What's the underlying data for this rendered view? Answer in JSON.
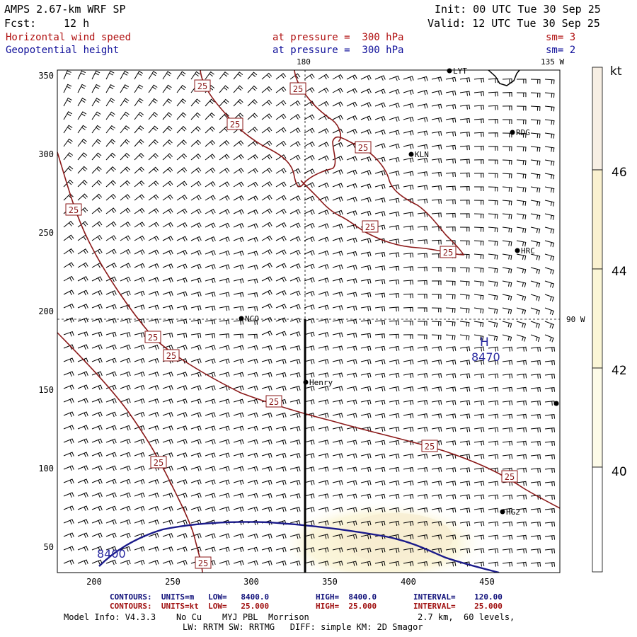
{
  "header": {
    "model": "AMPS 2.67-km WRF SP",
    "fcst_label": "Fcst:",
    "fcst_value": "12 h",
    "init": "Init: 00 UTC Tue 30 Sep 25",
    "valid": "Valid: 12 UTC Tue 30 Sep 25",
    "field1": "Horizontal wind speed",
    "field1_level": "at pressure =  300 hPa",
    "field1_sm": "sm= 3",
    "field2": "Geopotential height",
    "field2_level": "at pressure =  300 hPa",
    "field2_sm": "sm= 2"
  },
  "map": {
    "lon_top_180": "180",
    "lon_top_135w": "135 W",
    "lon_right_90w": "90 W",
    "x_ticks": [
      "200",
      "250",
      "300",
      "350",
      "400",
      "450"
    ],
    "y_ticks": [
      "350",
      "300",
      "250",
      "200",
      "150",
      "100",
      "50"
    ],
    "stations": [
      "LYT",
      "RDG",
      "KLN",
      "HRC",
      "NCO",
      "Henry",
      "HG2"
    ],
    "high_marker": "H",
    "high_value": "8470",
    "low_contour_label": "8400",
    "speed_contour_label": "25",
    "colors": {
      "speed_contour": "#8b1a1a",
      "height_contour": "#1a1a8a",
      "shade": "#faf3c8"
    }
  },
  "colorbar": {
    "unit": "kt",
    "labels": [
      "46",
      "44",
      "42",
      "40"
    ],
    "colors": [
      "#f7efe4",
      "#faf1d0",
      "#fbf6d6",
      "#fdfbe8",
      "#ffffff"
    ]
  },
  "footer": {
    "line1_title": "CONTOURS:  UNITS=m   LOW=   8400.0",
    "line1_high": "HIGH=  8400.0",
    "line1_interval": "INTERVAL=    120.00",
    "line2_title": "CONTOURS:  UNITS=kt  LOW=   25.000",
    "line2_high": "HIGH=  25.000",
    "line2_interval": "INTERVAL=    25.000",
    "info1": "Model Info: V4.3.3    No Cu    MYJ PBL  Morrison",
    "info1b": "2.7 km,  60 levels,",
    "info2": "LW: RRTM SW: RRTMG   DIFF: simple KM: 2D Smagor"
  }
}
